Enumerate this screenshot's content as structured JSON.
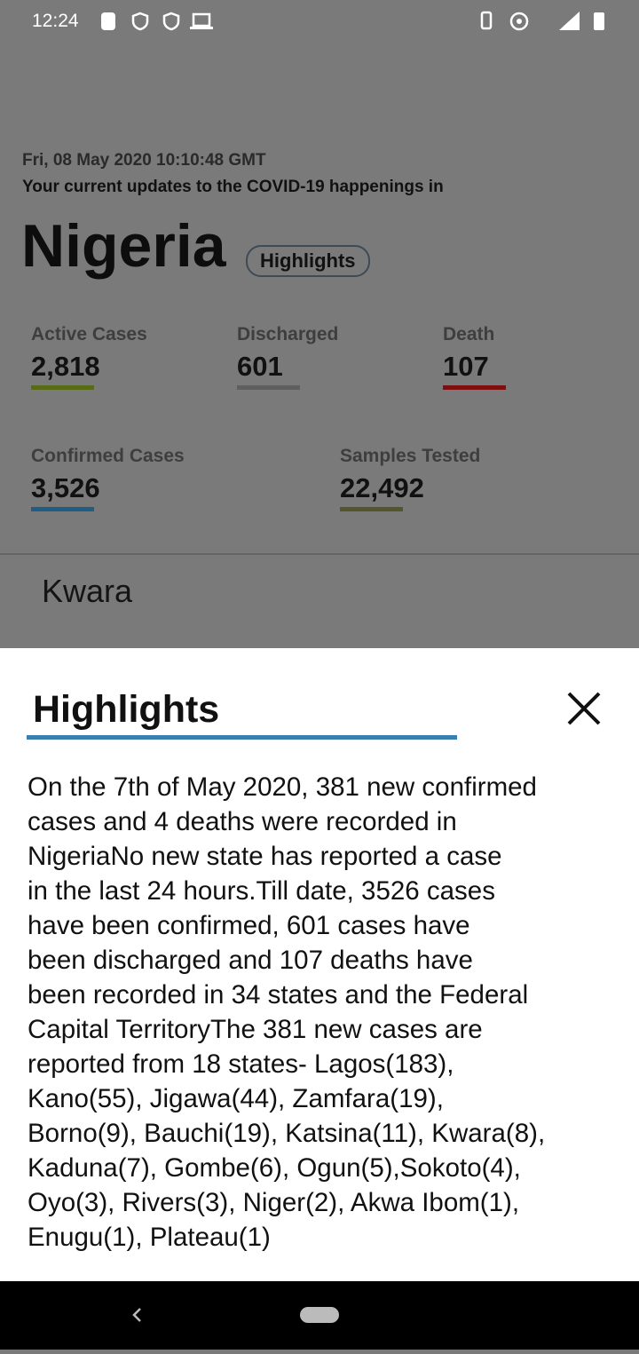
{
  "status_bar": {
    "time": "12:24"
  },
  "header": {
    "date": "Fri, 08 May 2020 10:10:48 GMT",
    "subtitle": "Your current updates to the COVID-19 happenings in",
    "country": "Nigeria",
    "button": "Highlights"
  },
  "stats": [
    {
      "label": "Active Cases",
      "value": "2,818",
      "color": "#586b17"
    },
    {
      "label": "Discharged",
      "value": "601",
      "color": "#5f5f5f"
    },
    {
      "label": "Death",
      "value": "107",
      "color": "#7d0f10"
    },
    {
      "label": "Confirmed Cases",
      "value": "3,526",
      "color": "#1f5d84"
    },
    {
      "label": "Samples Tested",
      "value": "22,492",
      "color": "#54552c"
    }
  ],
  "list": {
    "item": "Kwara"
  },
  "sheet": {
    "title": "Highlights",
    "lines": [
      "On the 7th of May 2020, 381 new confirmed",
      "cases and 4 deaths were recorded in",
      "NigeriaNo new state has reported a case",
      "in the last 24 hours.Till date, 3526 cases",
      "have been confirmed, 601 cases have",
      "been discharged and 107 deaths have",
      "been recorded in 34 states and the Federal",
      "Capital TerritoryThe 381 new cases are",
      "reported from 18 states- Lagos(183),",
      "Kano(55), Jigawa(44), Zamfara(19),",
      "Borno(9), Bauchi(19), Katsina(11), Kwara(8),",
      "Kaduna(7), Gombe(6), Ogun(5),Sokoto(4),",
      "Oyo(3), Rivers(3), Niger(2), Akwa Ibom(1),",
      "Enugu(1), Plateau(1)"
    ]
  }
}
